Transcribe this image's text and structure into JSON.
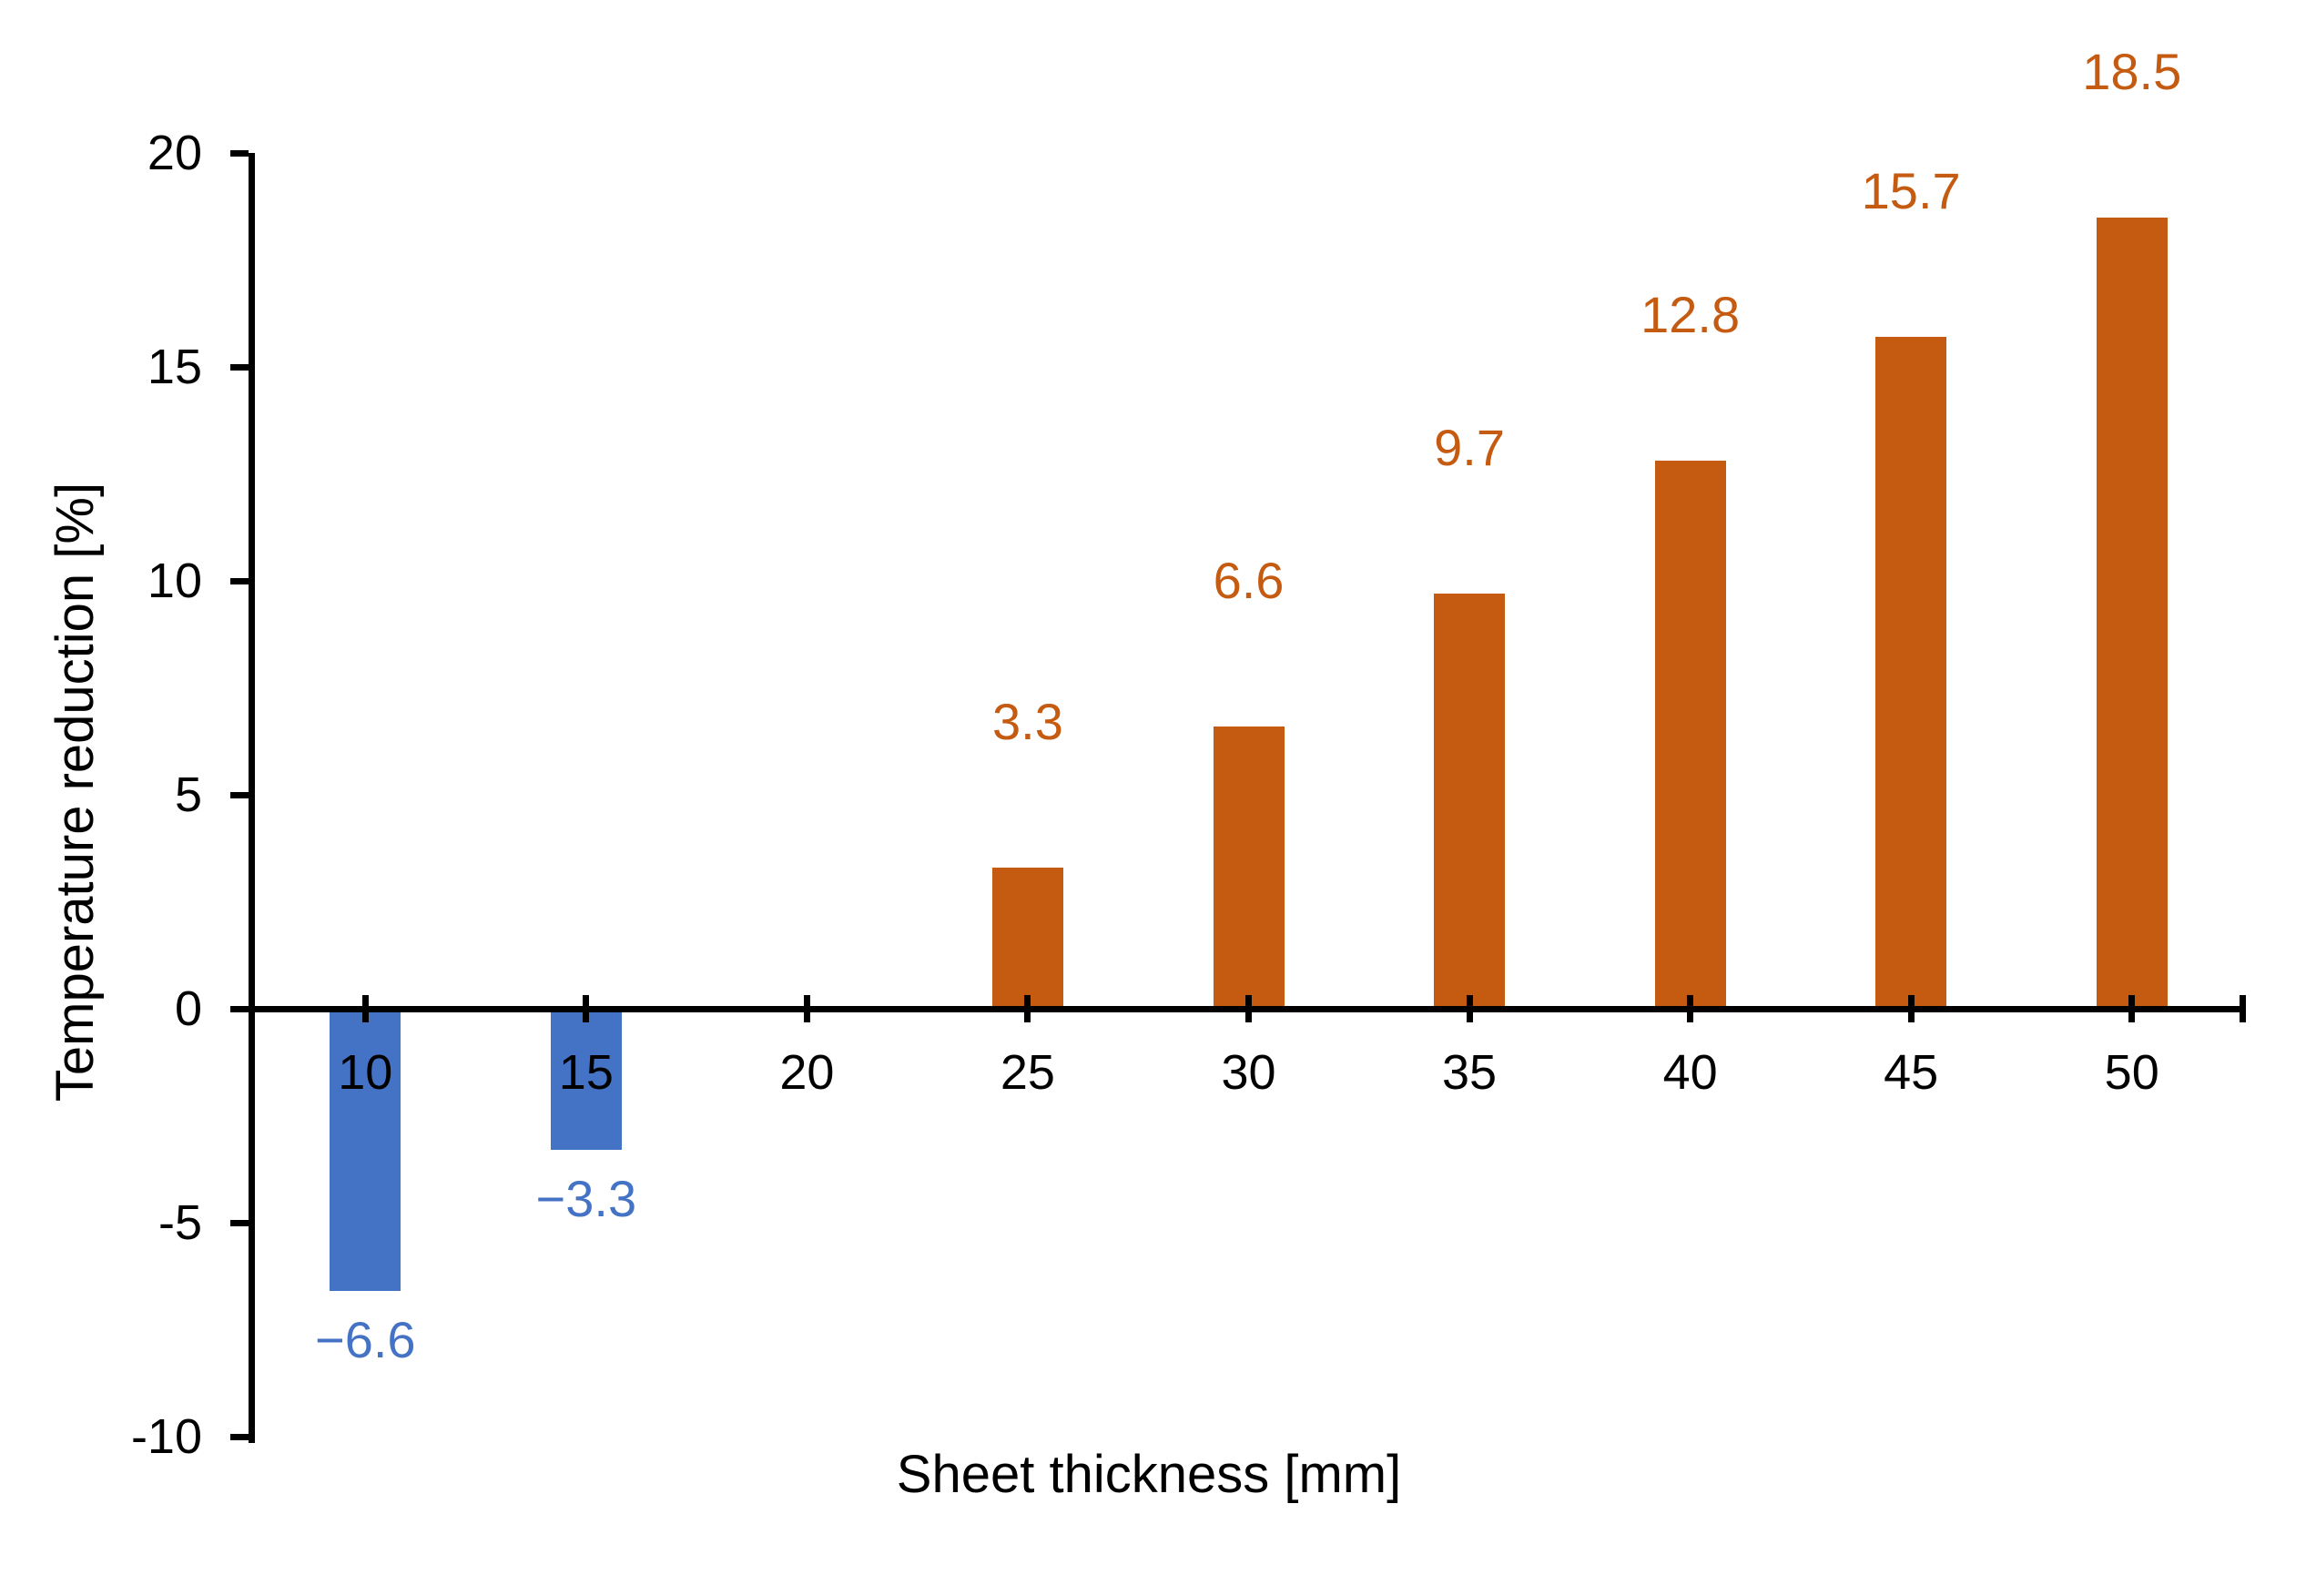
{
  "chart_data": {
    "type": "bar",
    "title": "",
    "xlabel": "Sheet thickness [mm]",
    "ylabel": "Temperature reduction [%]",
    "categories": [
      "10",
      "15",
      "20",
      "25",
      "30",
      "35",
      "40",
      "45",
      "50"
    ],
    "values": [
      -6.6,
      -3.3,
      0,
      3.3,
      6.6,
      9.7,
      12.8,
      15.7,
      18.5
    ],
    "data_labels": [
      "−6.6",
      "−3.3",
      "",
      "3.3",
      "6.6",
      "9.7",
      "12.8",
      "15.7",
      "18.5"
    ],
    "series_name": "Temperature reduction",
    "ylim": [
      -10,
      20
    ],
    "yticks": [
      20,
      15,
      10,
      5,
      0,
      -5,
      -10
    ],
    "ytick_labels": [
      "20",
      "15",
      "10",
      "5",
      "0",
      "-5",
      "-10"
    ],
    "grid": false,
    "legend_position": "none",
    "colors": {
      "positive_bar": "#C55A11",
      "negative_bar": "#4472C4",
      "positive_label": "#C55A11",
      "negative_label": "#4472C4",
      "axis": "#000000",
      "text": "#000000",
      "background": "#FFFFFF"
    }
  }
}
